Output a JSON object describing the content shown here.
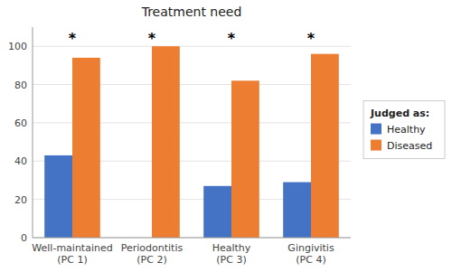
{
  "chart_data": {
    "type": "bar",
    "title": "Treatment need",
    "categories": [
      "Well-maintained\n(PC 1)",
      "Periodontitis\n(PC 2)",
      "Healthy\n(PC 3)",
      "Gingivitis\n(PC 4)"
    ],
    "series": [
      {
        "name": "Healthy",
        "color": "#4472C4",
        "values": [
          43,
          0,
          27,
          29
        ]
      },
      {
        "name": "Diseased",
        "color": "#ED7D31",
        "values": [
          94,
          100,
          82,
          96
        ]
      }
    ],
    "ylim": [
      0,
      110
    ],
    "yticks": [
      0,
      20,
      40,
      60,
      80,
      100
    ],
    "grid": true,
    "legend": "right",
    "legend_title": "Judged as:",
    "annotations": [
      {
        "text": "*",
        "x": 0,
        "y": 107
      },
      {
        "text": "*",
        "x": 1,
        "y": 107
      },
      {
        "text": "*",
        "x": 2,
        "y": 107
      },
      {
        "text": "*",
        "x": 3,
        "y": 107
      }
    ]
  }
}
